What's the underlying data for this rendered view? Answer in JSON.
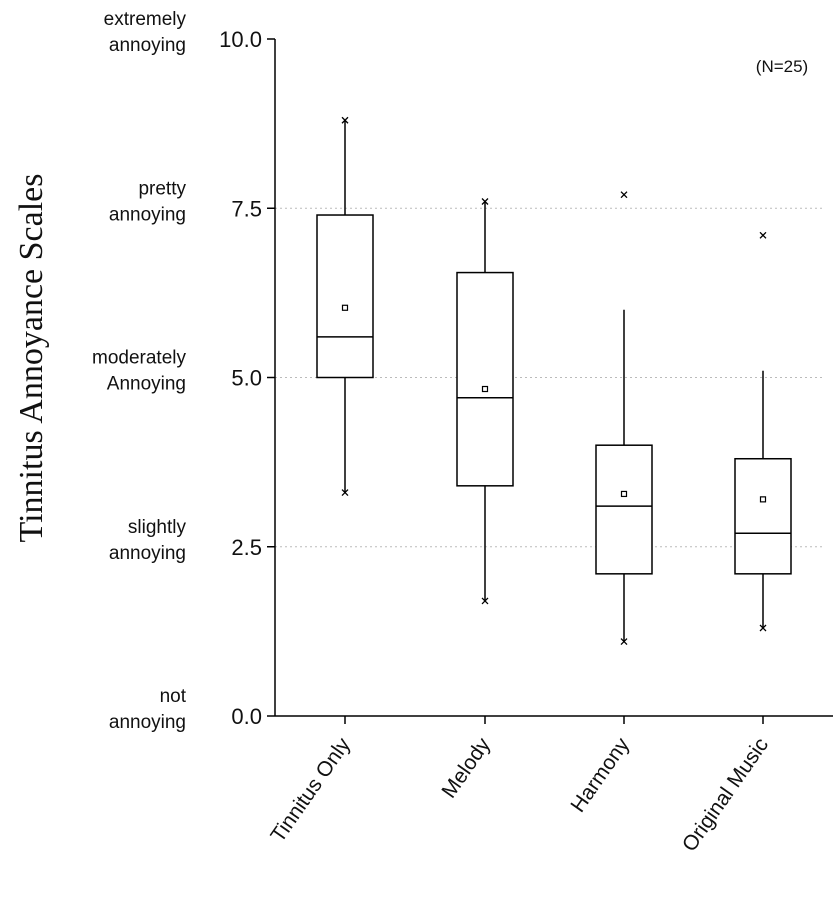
{
  "chart_data": {
    "type": "box",
    "ylabel": "Tinnitus Annoyance Scales",
    "ylim": [
      0,
      10
    ],
    "yticks": [
      {
        "value": 0,
        "label": "0.0",
        "desc": [
          "not",
          "annoying"
        ]
      },
      {
        "value": 2.5,
        "label": "2.5",
        "desc": [
          "slightly",
          "annoying"
        ]
      },
      {
        "value": 5,
        "label": "5.0",
        "desc": [
          "moderately",
          "Annoying"
        ]
      },
      {
        "value": 7.5,
        "label": "7.5",
        "desc": [
          "pretty",
          "annoying"
        ]
      },
      {
        "value": 10,
        "label": "10.0",
        "desc": [
          "extremely",
          "annoying"
        ]
      }
    ],
    "gridlines": [
      2.5,
      5,
      7.5
    ],
    "annotation": "(N=25)",
    "categories": [
      "Tinnitus Only",
      "Melody",
      "Harmony",
      "Original Music"
    ],
    "boxes": [
      {
        "q1": 5.0,
        "median": 5.6,
        "q3": 7.4,
        "mean": 6.03,
        "whisker_low": 3.3,
        "whisker_high": 8.8,
        "min": 3.3,
        "max": 8.8
      },
      {
        "q1": 3.4,
        "median": 4.7,
        "q3": 6.55,
        "mean": 4.83,
        "whisker_low": 1.7,
        "whisker_high": 7.6,
        "min": 1.7,
        "max": 7.6
      },
      {
        "q1": 2.1,
        "median": 3.1,
        "q3": 4.0,
        "mean": 3.28,
        "whisker_low": 1.1,
        "whisker_high": 6.0,
        "min": 1.1,
        "max": 7.7
      },
      {
        "q1": 2.1,
        "median": 2.7,
        "q3": 3.8,
        "mean": 3.2,
        "whisker_low": 1.3,
        "whisker_high": 5.1,
        "min": 1.3,
        "max": 7.1
      }
    ]
  }
}
